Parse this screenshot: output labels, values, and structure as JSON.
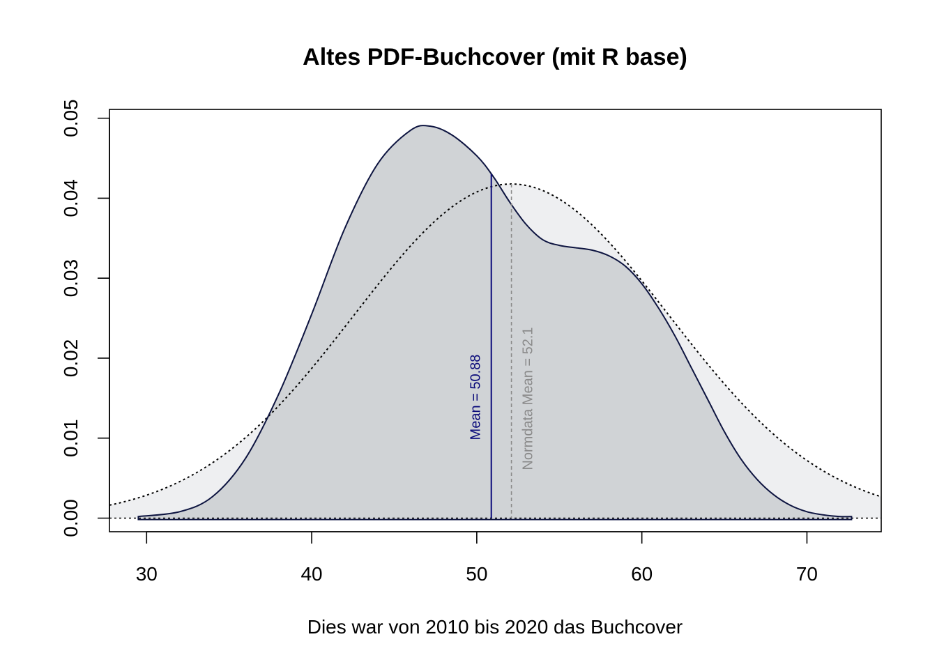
{
  "chart_data": {
    "type": "area",
    "title": "Altes PDF-Buchcover (mit R base)",
    "xlabel": "Dies war von 2010 bis 2020 das Buchcover",
    "ylabel": "",
    "xlim": [
      27.75,
      74.5
    ],
    "ylim": [
      -0.0017,
      0.0511
    ],
    "x_ticks": [
      30,
      40,
      50,
      60,
      70
    ],
    "x_tick_labels": [
      "30",
      "40",
      "50",
      "60",
      "70"
    ],
    "y_ticks": [
      0.0,
      0.01,
      0.02,
      0.03,
      0.04,
      0.05
    ],
    "y_tick_labels": [
      "0.00",
      "0.01",
      "0.02",
      "0.03",
      "0.04",
      "0.05"
    ],
    "grid": false,
    "legend": "none",
    "series": [
      {
        "kind": "density",
        "fill": "#d0d3d6",
        "stroke": "#0d1440",
        "style": "solid",
        "x": [
          29.5,
          32,
          34,
          36,
          38,
          40,
          42,
          44,
          46,
          47.2,
          48.5,
          50,
          51,
          52,
          53,
          54,
          55,
          56,
          57,
          58,
          59,
          60,
          61,
          62,
          63,
          64,
          65,
          66,
          67,
          68,
          69,
          70,
          71,
          72,
          72.7
        ],
        "y": [
          0.0002,
          0.0008,
          0.0027,
          0.0075,
          0.0155,
          0.0255,
          0.0362,
          0.0443,
          0.0485,
          0.049,
          0.0479,
          0.0453,
          0.0427,
          0.0395,
          0.0367,
          0.0348,
          0.0341,
          0.0338,
          0.0335,
          0.0328,
          0.0315,
          0.0293,
          0.0263,
          0.0228,
          0.0188,
          0.0148,
          0.0108,
          0.0074,
          0.0048,
          0.0029,
          0.0016,
          0.0008,
          0.0004,
          0.0002,
          0.0002
        ]
      },
      {
        "kind": "normal",
        "mean": 52.1,
        "sd": 9.55,
        "fill": "#eeeff1",
        "stroke": "#000000",
        "style": "dotted"
      }
    ],
    "reference_lines": [
      {
        "axis": "y",
        "value": 0.0,
        "style": "dotted",
        "color": "#000000"
      },
      {
        "axis": "x",
        "value": 50.88,
        "style": "solid",
        "color": "#0a0a7a",
        "label": "Mean = 50.88"
      },
      {
        "axis": "x",
        "value": 52.1,
        "style": "dashed",
        "color": "#8a8a8a",
        "label": "Normdata Mean = 52.1"
      }
    ]
  }
}
